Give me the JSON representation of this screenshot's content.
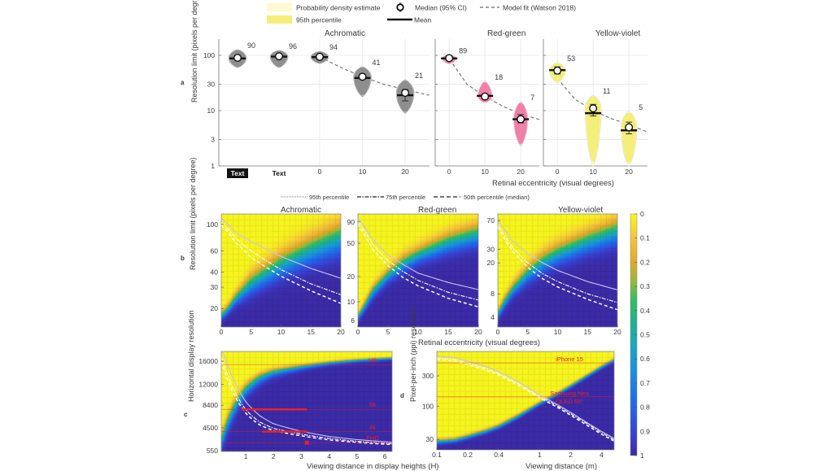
{
  "panel_labels": {
    "a": "a",
    "b": "b",
    "c": "c",
    "d": "d"
  },
  "legend_a": {
    "density": "Probability density estimate",
    "p95": "95th percentile",
    "median": "Median (95% CI)",
    "mean": "Mean",
    "model": "Model fit (Watson 2018)"
  },
  "legend_b": {
    "p95": "95th percentile",
    "p75": "75th percentile",
    "p50": "50th percentile (median)"
  },
  "colors": {
    "achromatic": "#8e8e8e",
    "red_green": "#f27fa8",
    "yellow_violet": "#f4ee7a",
    "density_pale": "#fdfad2",
    "annotation_red": "#e8202a",
    "heatmap_high": "#3b2ba6",
    "heatmap_low": "#f7f51e"
  },
  "colorbar": {
    "ticks": [
      "0",
      "0.1",
      "0.2",
      "0.3",
      "0.4",
      "0.5",
      "0.6",
      "0.7",
      "0.8",
      "0.9",
      "1"
    ],
    "colormap": "parula (reversed)"
  },
  "chart_data": [
    {
      "type": "violin",
      "title": "Achromatic",
      "ylabel": "Resolution limit (pixels per degree)",
      "yscale": "log",
      "ylim": [
        1,
        197
      ],
      "yticks": [
        "1",
        "3",
        "10",
        "30",
        "100"
      ],
      "xticks": [
        "0",
        "10",
        "20"
      ],
      "groups": [
        {
          "xlabel": "Text",
          "badge": true,
          "median": 90,
          "mean": 88,
          "ci": [
            85,
            95
          ],
          "range": [
            60,
            127
          ],
          "label": "90"
        },
        {
          "xlabel": "Text",
          "badge": false,
          "median": 96,
          "mean": 95,
          "ci": [
            92,
            100
          ],
          "range": [
            60,
            123
          ],
          "label": "96"
        },
        {
          "x": 0,
          "median": 94,
          "mean": 93,
          "ci": [
            90,
            98
          ],
          "range": [
            71,
            118
          ],
          "label": "94"
        },
        {
          "x": 10,
          "median": 41,
          "mean": 39,
          "ci": [
            37,
            45
          ],
          "range": [
            18,
            62
          ],
          "label": "41"
        },
        {
          "x": 20,
          "median": 21,
          "mean": 19,
          "ci": [
            15,
            24
          ],
          "range": [
            9,
            36
          ],
          "label": "21"
        }
      ],
      "model_fit": {
        "x": [
          0,
          5,
          10,
          15,
          20,
          25.6
        ],
        "y": [
          94,
          60,
          41,
          30,
          24,
          19
        ]
      }
    },
    {
      "type": "violin",
      "title": "Red-green",
      "yscale": "log",
      "ylim": [
        1,
        197
      ],
      "xticks": [
        "0",
        "10",
        "20"
      ],
      "xlabel": "Retinal eccentricity (visual degrees)",
      "groups": [
        {
          "x": 0,
          "median": 89,
          "mean": 88,
          "ci": [
            84,
            94
          ],
          "range": [
            70,
            102
          ],
          "label": "89"
        },
        {
          "x": 10,
          "median": 18,
          "mean": 18.5,
          "ci": [
            16.5,
            20
          ],
          "range": [
            14,
            34
          ],
          "label": "18"
        },
        {
          "x": 20,
          "median": 7,
          "mean": 7,
          "ci": [
            6,
            8.5
          ],
          "range": [
            2.3,
            14.5
          ],
          "label": "7"
        }
      ],
      "model_fit": {
        "x": [
          1,
          5,
          10,
          15,
          20,
          25.2
        ],
        "y": [
          70,
          30,
          18,
          12,
          8.7,
          6.9
        ]
      }
    },
    {
      "type": "violin",
      "title": "Yellow-violet",
      "yscale": "log",
      "ylim": [
        1,
        197
      ],
      "xticks": [
        "0",
        "10",
        "20"
      ],
      "groups": [
        {
          "x": 0,
          "median": 53,
          "mean": 54,
          "ci": [
            46,
            62
          ],
          "range": [
            32,
            74
          ],
          "label": "53"
        },
        {
          "x": 10,
          "median": 11,
          "mean": 9,
          "ci": [
            8,
            13
          ],
          "range": [
            1,
            19
          ],
          "label": "11"
        },
        {
          "x": 20,
          "median": 5,
          "mean": 4.4,
          "ci": [
            3.8,
            6.2
          ],
          "range": [
            1,
            9.6
          ],
          "label": "5"
        }
      ],
      "model_fit": {
        "x": [
          1,
          5,
          10,
          15,
          20,
          25.2
        ],
        "y": [
          32,
          16,
          10,
          7.2,
          5.6,
          4.1
        ]
      }
    },
    {
      "type": "heatmap",
      "title": "Achromatic",
      "ylabel": "Resolution limit (pixels per degree)",
      "xlim": [
        0,
        20
      ],
      "xticks": [
        "0",
        "5",
        "10",
        "15",
        "20"
      ],
      "yscale": "log",
      "ylim": [
        14,
        122
      ],
      "yticks": [
        "20",
        "30",
        "40",
        "60",
        "100"
      ],
      "x": [
        0,
        1,
        2.5,
        5,
        7.5,
        10,
        15,
        20
      ],
      "p50": [
        98,
        88,
        70,
        53,
        44,
        37,
        28,
        22
      ],
      "p75": [
        104,
        93,
        76,
        60,
        50,
        42,
        32,
        26
      ],
      "p95": [
        112,
        101,
        85,
        72,
        62,
        54,
        43,
        35.6
      ]
    },
    {
      "type": "heatmap",
      "title": "Red-green",
      "xlabel": "Retinal eccentricity (visual degrees)",
      "xlim": [
        0,
        20
      ],
      "xticks": [
        "0",
        "5",
        "10",
        "15",
        "20"
      ],
      "yscale": "log",
      "ylim": [
        5,
        112
      ],
      "yticks": [
        "6",
        "10",
        "20",
        "50",
        "90"
      ],
      "x": [
        0,
        1,
        2.5,
        5,
        7.5,
        10,
        15,
        20
      ],
      "p50": [
        85,
        65,
        42,
        27,
        19.5,
        15.5,
        11,
        8.7
      ],
      "p75": [
        92,
        72,
        48,
        31,
        23,
        18,
        13,
        10.5
      ],
      "p95": [
        100,
        80,
        55,
        36,
        28,
        22,
        17,
        14
      ]
    },
    {
      "type": "heatmap",
      "title": "Yellow-violet",
      "xlim": [
        0,
        20
      ],
      "xticks": [
        "0",
        "5",
        "10",
        "15",
        "20"
      ],
      "yscale": "log",
      "ylim": [
        3,
        85
      ],
      "yticks": [
        "4",
        "8",
        "20",
        "30",
        "70"
      ],
      "x": [
        0,
        1,
        2.5,
        5,
        7.5,
        10,
        15,
        20
      ],
      "p50": [
        58,
        42,
        28,
        17.5,
        12.5,
        9.8,
        6.8,
        5.0
      ],
      "p75": [
        62,
        46,
        31,
        20,
        14.5,
        11.5,
        8,
        6.2
      ],
      "p95": [
        72,
        55,
        38,
        26,
        20,
        16,
        11.5,
        9
      ]
    },
    {
      "type": "heatmap",
      "xlabel": "Viewing distance in display heights (H)",
      "ylabel": "Horizontal display resolution",
      "xlim": [
        0.12,
        6.26
      ],
      "xticks": [
        "1",
        "2",
        "3",
        "4",
        "5",
        "6"
      ],
      "yscale": "linear",
      "ylim": [
        400,
        17700
      ],
      "yticks": [
        "550",
        "4500",
        "8400",
        "12000",
        "16000"
      ],
      "x": [
        0.12,
        0.5,
        1,
        1.5,
        2,
        3,
        4,
        5,
        6.26
      ],
      "p50": [
        16000,
        11000,
        7000,
        5000,
        4000,
        3100,
        2400,
        1950,
        1600
      ],
      "p75": [
        16800,
        11800,
        7600,
        5500,
        4400,
        3400,
        2650,
        2150,
        1750
      ],
      "p95": [
        18500,
        13500,
        9000,
        6600,
        5200,
        3900,
        3000,
        2450,
        2000
      ],
      "reference_lines": [
        {
          "label": "16k",
          "y": 15360
        },
        {
          "label": "8k",
          "y": 7680
        },
        {
          "label": "4k",
          "y": 3840
        },
        {
          "label": "FHD",
          "y": 1920
        }
      ],
      "segments": [
        {
          "y": 7680,
          "x": [
            0.85,
            3.2
          ]
        },
        {
          "y": 3840,
          "x": [
            1.6,
            3.2
          ]
        }
      ],
      "points": [
        {
          "x": 3.2,
          "y": 1920
        }
      ]
    },
    {
      "type": "heatmap",
      "xlabel": "Viewing distance (m)",
      "ylabel": "Pixel-per-inch (ppi) resolution",
      "xscale": "log",
      "xlim": [
        0.1,
        5.3
      ],
      "xticks": [
        "0.1",
        "0.2",
        "0.4",
        "1",
        "2",
        "4"
      ],
      "yscale": "log",
      "ylim": [
        20.5,
        727
      ],
      "yticks": [
        "30",
        "100",
        "300"
      ],
      "x": [
        0.1,
        0.15,
        0.2,
        0.3,
        0.4,
        0.6,
        1,
        1.5,
        2,
        3,
        4,
        5.3
      ],
      "p50": [
        540,
        510,
        450,
        370,
        310,
        220,
        135,
        95,
        72,
        48,
        36,
        28
      ],
      "p75": [
        570,
        540,
        478,
        392,
        328,
        233,
        143,
        100,
        76,
        51,
        38,
        29.5
      ],
      "p95": [
        620,
        580,
        510,
        420,
        350,
        250,
        150,
        105,
        80,
        53,
        40,
        31
      ],
      "reference_lines": [
        {
          "label": "iPhone 15",
          "y": 480
        },
        {
          "label": "Samsung Neo",
          "label2": "QLED 65\"",
          "y": 140
        }
      ]
    }
  ]
}
